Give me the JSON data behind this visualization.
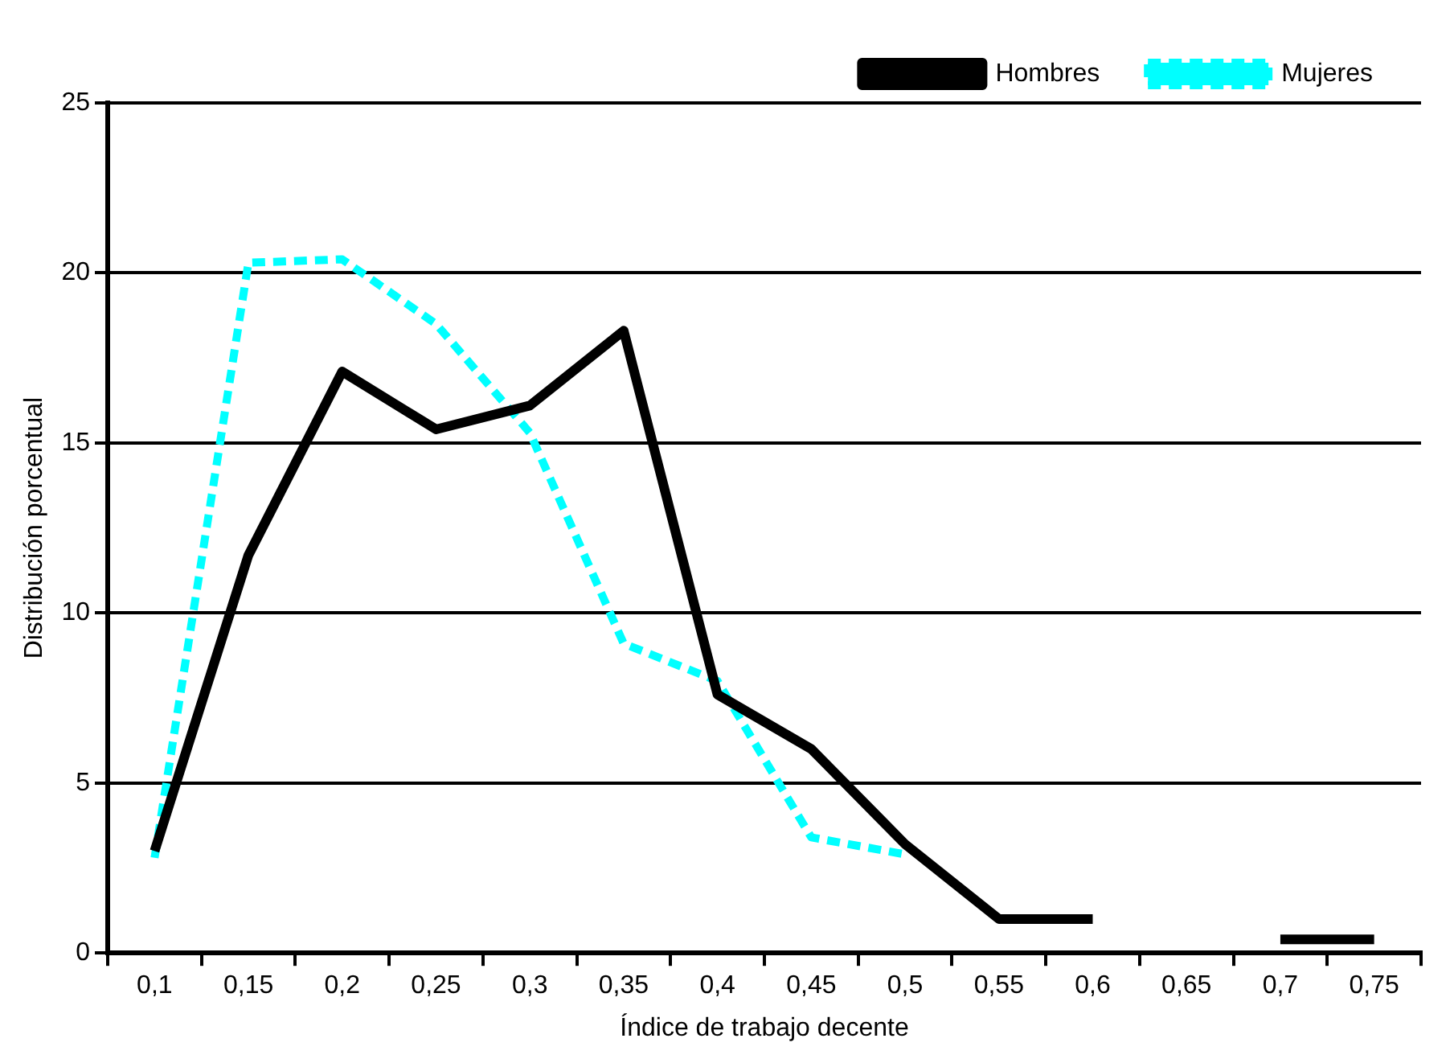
{
  "chart_data": {
    "type": "line",
    "xlabel": "Índice de trabajo decente",
    "ylabel": "Distribución porcentual",
    "categories": [
      "0,1",
      "0,15",
      "0,2",
      "0,25",
      "0,3",
      "0,35",
      "0,4",
      "0,45",
      "0,5",
      "0,55",
      "0,6",
      "0,65",
      "0,7",
      "0,75"
    ],
    "series": [
      {
        "name": "Hombres",
        "color": "#000000",
        "line_style": "solid",
        "values": [
          3.0,
          11.7,
          17.1,
          15.4,
          16.1,
          18.3,
          7.6,
          6.0,
          3.2,
          1.0,
          1.0,
          null,
          0.4,
          0.4
        ]
      },
      {
        "name": "Mujeres",
        "color": "#00ffff",
        "line_style": "dashed",
        "values": [
          2.8,
          20.3,
          20.4,
          18.5,
          15.3,
          9.1,
          8.0,
          3.4,
          2.9,
          null,
          null,
          null,
          null,
          null
        ]
      }
    ],
    "ylim": [
      0,
      25
    ],
    "yticks": [
      0,
      5,
      10,
      15,
      20,
      25
    ],
    "grid": "y",
    "legend": "top right",
    "marker": "none"
  }
}
